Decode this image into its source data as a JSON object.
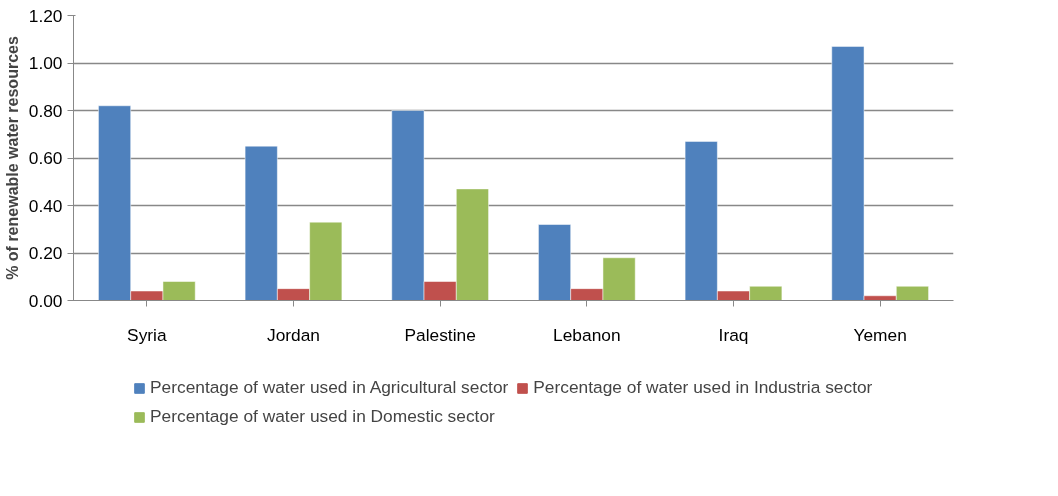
{
  "chart_data": {
    "type": "bar",
    "ylabel": "% of renewable water resources",
    "categories": [
      "Syria",
      "Jordan",
      "Palestine",
      "Lebanon",
      "Iraq",
      "Yemen"
    ],
    "series": [
      {
        "name": "Percentage of water used in Agricultural sector",
        "color": "#4f81bd",
        "values": [
          0.82,
          0.65,
          0.8,
          0.32,
          0.67,
          1.07
        ]
      },
      {
        "name": "Percentage of water used in Industria sector",
        "color": "#c0504d",
        "values": [
          0.04,
          0.05,
          0.08,
          0.05,
          0.04,
          0.02
        ]
      },
      {
        "name": "Percentage of water used in Domestic sector",
        "color": "#9bbb59",
        "values": [
          0.08,
          0.33,
          0.47,
          0.18,
          0.06,
          0.06
        ]
      }
    ],
    "ylim": [
      0,
      1.2
    ],
    "yticks": [
      {
        "value": 0,
        "label": "0.00"
      },
      {
        "value": 0.2,
        "label": "0.20"
      },
      {
        "value": 0.4,
        "label": "0.40"
      },
      {
        "value": 0.6,
        "label": "0.60"
      },
      {
        "value": 0.8,
        "label": "0.80"
      },
      {
        "value": 1.0,
        "label": "1.00"
      },
      {
        "value": 1.2,
        "label": "1.20"
      }
    ],
    "grid": "y",
    "legend": "bottom"
  }
}
